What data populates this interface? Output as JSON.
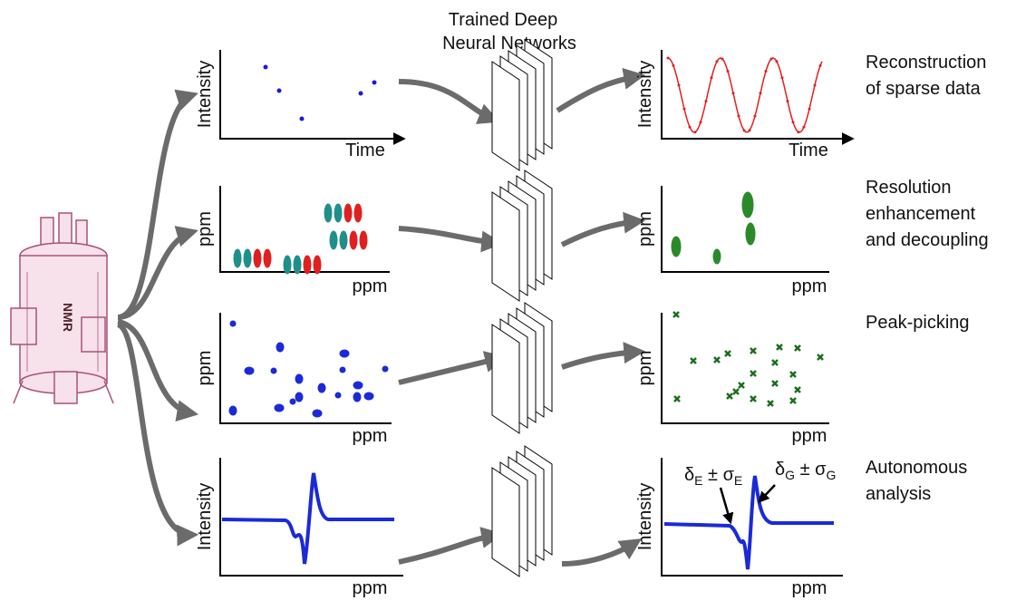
{
  "network_label": [
    "Trained Deep",
    "Neural Networks"
  ],
  "instrument_label": "NMR",
  "rows": [
    {
      "input": {
        "y_label": "Intensity",
        "x_label": "Time"
      },
      "output": {
        "y_label": "Intensity",
        "x_label": "Time"
      },
      "task": [
        "Reconstruction",
        "of sparse data"
      ]
    },
    {
      "input": {
        "y_label": "ppm",
        "x_label": "ppm"
      },
      "output": {
        "y_label": "ppm",
        "x_label": "ppm"
      },
      "task": [
        "Resolution",
        "enhancement",
        "and decoupling"
      ]
    },
    {
      "input": {
        "y_label": "ppm",
        "x_label": "ppm"
      },
      "output": {
        "y_label": "ppm",
        "x_label": "ppm"
      },
      "task": [
        "Peak-picking"
      ]
    },
    {
      "input": {
        "y_label": "Intensity",
        "x_label": "ppm"
      },
      "output": {
        "y_label": "Intensity",
        "x_label": "ppm"
      },
      "task": [
        "Autonomous",
        "analysis"
      ]
    }
  ],
  "annotations": [
    {
      "symbol": "δ",
      "sub": "E",
      "pm": " ± σ",
      "sub2": "E"
    },
    {
      "symbol": "δ",
      "sub": "G",
      "pm": " ± σ",
      "sub2": "G"
    }
  ]
}
